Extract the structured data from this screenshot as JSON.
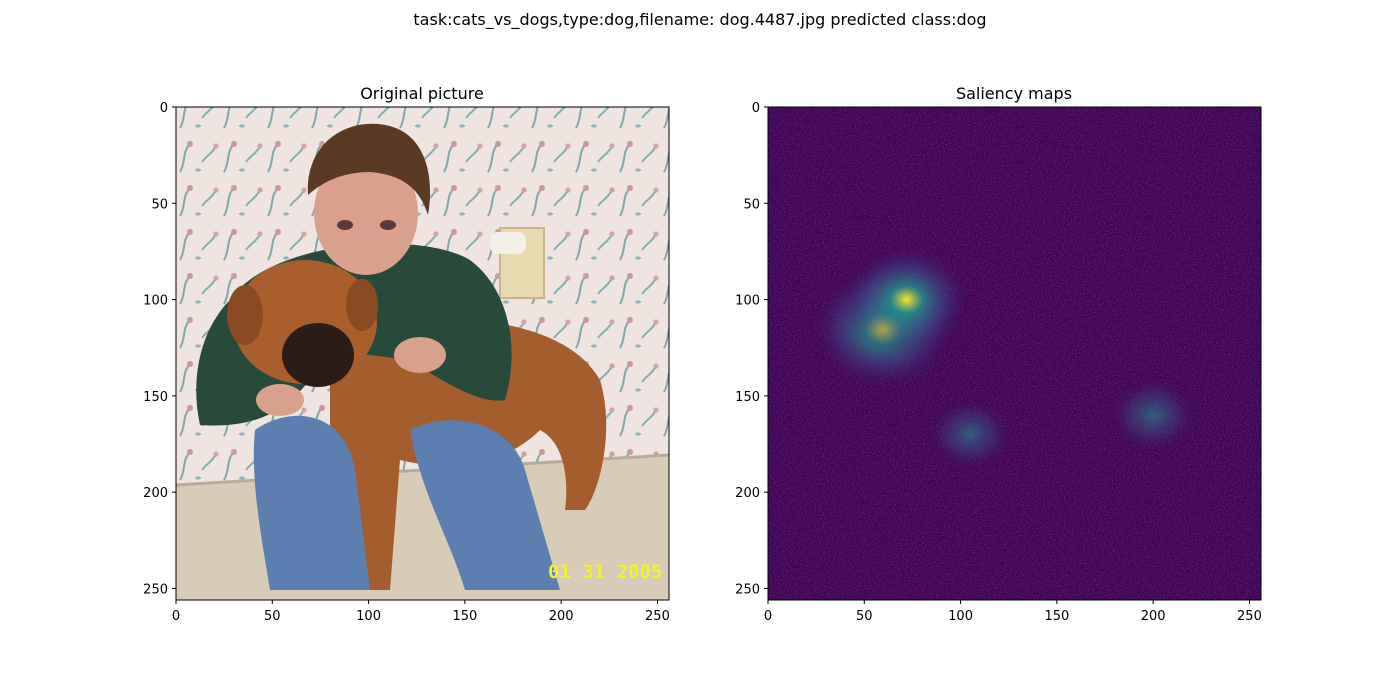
{
  "suptitle": "task:cats_vs_dogs,type:dog,filename: dog.4487.jpg predicted class:dog",
  "chart_data": [
    {
      "type": "image",
      "title": "Original picture",
      "xlim": [
        0,
        256
      ],
      "ylim": [
        256,
        0
      ],
      "xticks": [
        0,
        50,
        100,
        150,
        200,
        250
      ],
      "yticks": [
        0,
        50,
        100,
        150,
        200,
        250
      ],
      "overlay_text": "01 31 2005",
      "colors": {
        "text": "#f2f22a",
        "wall": "#efe4df",
        "floor": "#d8cbb8",
        "sweater": "#284a3a",
        "jeans": "#5a7fb0",
        "fur": "#a45e2d",
        "face": "#d9a08c",
        "hair": "#5a3a22"
      }
    },
    {
      "type": "heatmap",
      "title": "Saliency maps",
      "colormap": "viridis",
      "xlim": [
        0,
        256
      ],
      "ylim": [
        256,
        0
      ],
      "xticks": [
        0,
        50,
        100,
        150,
        200,
        250
      ],
      "yticks": [
        0,
        50,
        100,
        150,
        200,
        250
      ],
      "hotspots": [
        {
          "x": 60,
          "y": 115,
          "intensity": 1.0
        },
        {
          "x": 72,
          "y": 100,
          "intensity": 0.8
        },
        {
          "x": 105,
          "y": 170,
          "intensity": 0.3
        },
        {
          "x": 200,
          "y": 160,
          "intensity": 0.35
        }
      ],
      "colors": {
        "background": "#440154",
        "low": "#3b528b",
        "mid": "#21918c",
        "high": "#fde725"
      }
    }
  ]
}
